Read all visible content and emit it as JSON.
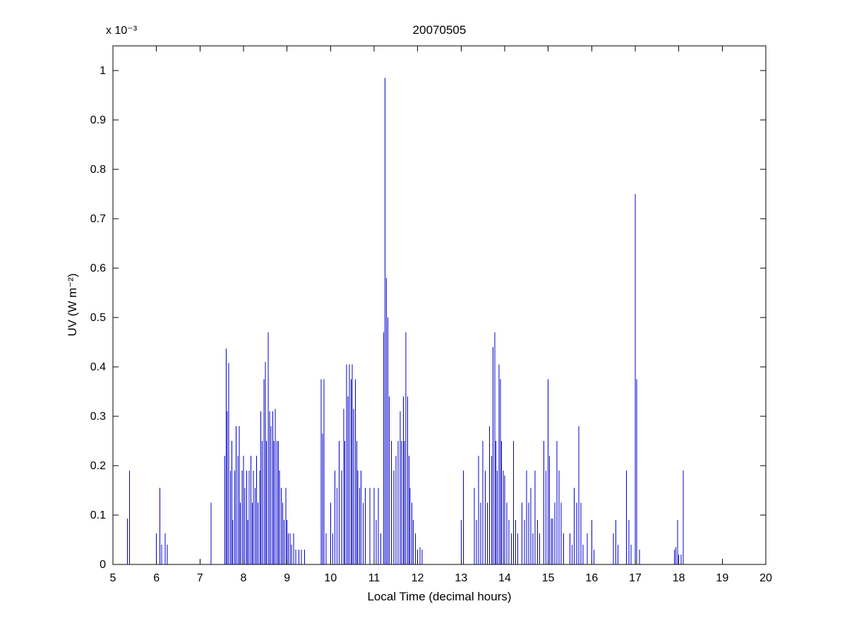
{
  "chart_data": {
    "type": "bar",
    "style": "stem",
    "title": "20070505",
    "xlabel": "Local Time (decimal hours)",
    "ylabel": "UV (W m⁻²)",
    "y_multiplier_label": "x 10⁻³",
    "y_unit_scale": "1e-3",
    "xlim": [
      5,
      20
    ],
    "ylim": [
      0,
      1.05
    ],
    "xticks": [
      5,
      6,
      7,
      8,
      9,
      10,
      11,
      12,
      13,
      14,
      15,
      16,
      17,
      18,
      19,
      20
    ],
    "ytick_values": [
      0,
      0.1,
      0.2,
      0.3,
      0.4,
      0.5,
      0.6,
      0.7,
      0.8,
      0.9,
      1
    ],
    "ytick_labels": [
      "0",
      "0.1",
      "0.2",
      "0.3",
      "0.4",
      "0.5",
      "0.6",
      "0.7",
      "0.8",
      "0.9",
      "1"
    ],
    "grid": false,
    "legend": false,
    "line_color": "#0000CC",
    "axis_color": "#000000",
    "points": [
      [
        5.33,
        0.093
      ],
      [
        5.38,
        0.19
      ],
      [
        6.0,
        0.063
      ],
      [
        6.08,
        0.155
      ],
      [
        6.12,
        0.04
      ],
      [
        6.2,
        0.063
      ],
      [
        6.25,
        0.04
      ],
      [
        7.25,
        0.125
      ],
      [
        7.57,
        0.22
      ],
      [
        7.6,
        0.437
      ],
      [
        7.63,
        0.31
      ],
      [
        7.66,
        0.408
      ],
      [
        7.7,
        0.19
      ],
      [
        7.73,
        0.25
      ],
      [
        7.76,
        0.09
      ],
      [
        7.8,
        0.19
      ],
      [
        7.83,
        0.28
      ],
      [
        7.87,
        0.22
      ],
      [
        7.9,
        0.28
      ],
      [
        7.93,
        0.125
      ],
      [
        7.97,
        0.19
      ],
      [
        8.0,
        0.22
      ],
      [
        8.03,
        0.155
      ],
      [
        8.07,
        0.19
      ],
      [
        8.1,
        0.09
      ],
      [
        8.13,
        0.19
      ],
      [
        8.17,
        0.22
      ],
      [
        8.2,
        0.125
      ],
      [
        8.23,
        0.19
      ],
      [
        8.27,
        0.155
      ],
      [
        8.3,
        0.22
      ],
      [
        8.33,
        0.125
      ],
      [
        8.37,
        0.19
      ],
      [
        8.4,
        0.31
      ],
      [
        8.43,
        0.25
      ],
      [
        8.47,
        0.375
      ],
      [
        8.5,
        0.41
      ],
      [
        8.53,
        0.25
      ],
      [
        8.57,
        0.47
      ],
      [
        8.6,
        0.31
      ],
      [
        8.63,
        0.28
      ],
      [
        8.67,
        0.31
      ],
      [
        8.7,
        0.25
      ],
      [
        8.73,
        0.315
      ],
      [
        8.77,
        0.25
      ],
      [
        8.8,
        0.25
      ],
      [
        8.83,
        0.19
      ],
      [
        8.87,
        0.155
      ],
      [
        8.9,
        0.125
      ],
      [
        8.93,
        0.09
      ],
      [
        8.97,
        0.155
      ],
      [
        9.0,
        0.09
      ],
      [
        9.03,
        0.063
      ],
      [
        9.07,
        0.063
      ],
      [
        9.1,
        0.04
      ],
      [
        9.15,
        0.063
      ],
      [
        9.2,
        0.03
      ],
      [
        9.27,
        0.03
      ],
      [
        9.33,
        0.03
      ],
      [
        9.4,
        0.03
      ],
      [
        9.78,
        0.375
      ],
      [
        9.82,
        0.265
      ],
      [
        9.85,
        0.375
      ],
      [
        9.9,
        0.063
      ],
      [
        10.0,
        0.125
      ],
      [
        10.05,
        0.063
      ],
      [
        10.1,
        0.19
      ],
      [
        10.15,
        0.155
      ],
      [
        10.2,
        0.25
      ],
      [
        10.25,
        0.19
      ],
      [
        10.3,
        0.315
      ],
      [
        10.33,
        0.25
      ],
      [
        10.37,
        0.405
      ],
      [
        10.4,
        0.34
      ],
      [
        10.43,
        0.405
      ],
      [
        10.47,
        0.375
      ],
      [
        10.5,
        0.405
      ],
      [
        10.53,
        0.315
      ],
      [
        10.57,
        0.375
      ],
      [
        10.6,
        0.25
      ],
      [
        10.63,
        0.19
      ],
      [
        10.67,
        0.155
      ],
      [
        10.7,
        0.19
      ],
      [
        10.75,
        0.125
      ],
      [
        10.8,
        0.155
      ],
      [
        10.9,
        0.155
      ],
      [
        11.0,
        0.155
      ],
      [
        11.05,
        0.09
      ],
      [
        11.1,
        0.155
      ],
      [
        11.15,
        0.063
      ],
      [
        11.22,
        0.47
      ],
      [
        11.25,
        0.985
      ],
      [
        11.28,
        0.58
      ],
      [
        11.32,
        0.5
      ],
      [
        11.35,
        0.34
      ],
      [
        11.4,
        0.25
      ],
      [
        11.45,
        0.19
      ],
      [
        11.5,
        0.22
      ],
      [
        11.55,
        0.25
      ],
      [
        11.6,
        0.31
      ],
      [
        11.63,
        0.25
      ],
      [
        11.67,
        0.34
      ],
      [
        11.7,
        0.25
      ],
      [
        11.73,
        0.47
      ],
      [
        11.77,
        0.34
      ],
      [
        11.8,
        0.22
      ],
      [
        11.83,
        0.155
      ],
      [
        11.87,
        0.125
      ],
      [
        11.9,
        0.09
      ],
      [
        11.95,
        0.063
      ],
      [
        12.0,
        0.03
      ],
      [
        12.05,
        0.035
      ],
      [
        12.1,
        0.03
      ],
      [
        13.0,
        0.09
      ],
      [
        13.05,
        0.19
      ],
      [
        13.3,
        0.155
      ],
      [
        13.35,
        0.09
      ],
      [
        13.4,
        0.22
      ],
      [
        13.45,
        0.125
      ],
      [
        13.5,
        0.25
      ],
      [
        13.55,
        0.19
      ],
      [
        13.6,
        0.125
      ],
      [
        13.65,
        0.28
      ],
      [
        13.7,
        0.22
      ],
      [
        13.73,
        0.44
      ],
      [
        13.77,
        0.47
      ],
      [
        13.8,
        0.25
      ],
      [
        13.83,
        0.19
      ],
      [
        13.87,
        0.405
      ],
      [
        13.9,
        0.375
      ],
      [
        13.93,
        0.25
      ],
      [
        13.97,
        0.19
      ],
      [
        14.0,
        0.18
      ],
      [
        14.05,
        0.125
      ],
      [
        14.1,
        0.09
      ],
      [
        14.15,
        0.063
      ],
      [
        14.2,
        0.25
      ],
      [
        14.25,
        0.09
      ],
      [
        14.3,
        0.063
      ],
      [
        14.4,
        0.125
      ],
      [
        14.45,
        0.09
      ],
      [
        14.5,
        0.19
      ],
      [
        14.55,
        0.125
      ],
      [
        14.6,
        0.155
      ],
      [
        14.65,
        0.063
      ],
      [
        14.7,
        0.19
      ],
      [
        14.75,
        0.09
      ],
      [
        14.8,
        0.063
      ],
      [
        14.9,
        0.25
      ],
      [
        14.95,
        0.19
      ],
      [
        15.0,
        0.375
      ],
      [
        15.03,
        0.22
      ],
      [
        15.07,
        0.093
      ],
      [
        15.1,
        0.093
      ],
      [
        15.15,
        0.125
      ],
      [
        15.2,
        0.25
      ],
      [
        15.25,
        0.19
      ],
      [
        15.3,
        0.125
      ],
      [
        15.35,
        0.063
      ],
      [
        15.5,
        0.063
      ],
      [
        15.55,
        0.04
      ],
      [
        15.6,
        0.155
      ],
      [
        15.65,
        0.125
      ],
      [
        15.7,
        0.28
      ],
      [
        15.75,
        0.125
      ],
      [
        15.8,
        0.04
      ],
      [
        15.9,
        0.063
      ],
      [
        16.0,
        0.09
      ],
      [
        16.05,
        0.03
      ],
      [
        16.5,
        0.063
      ],
      [
        16.55,
        0.09
      ],
      [
        16.6,
        0.04
      ],
      [
        16.8,
        0.19
      ],
      [
        16.85,
        0.09
      ],
      [
        16.9,
        0.04
      ],
      [
        17.0,
        0.75
      ],
      [
        17.03,
        0.375
      ],
      [
        17.1,
        0.03
      ],
      [
        17.9,
        0.03
      ],
      [
        17.93,
        0.035
      ],
      [
        17.97,
        0.09
      ],
      [
        18.0,
        0.02
      ],
      [
        18.05,
        0.02
      ],
      [
        18.1,
        0.19
      ]
    ]
  }
}
